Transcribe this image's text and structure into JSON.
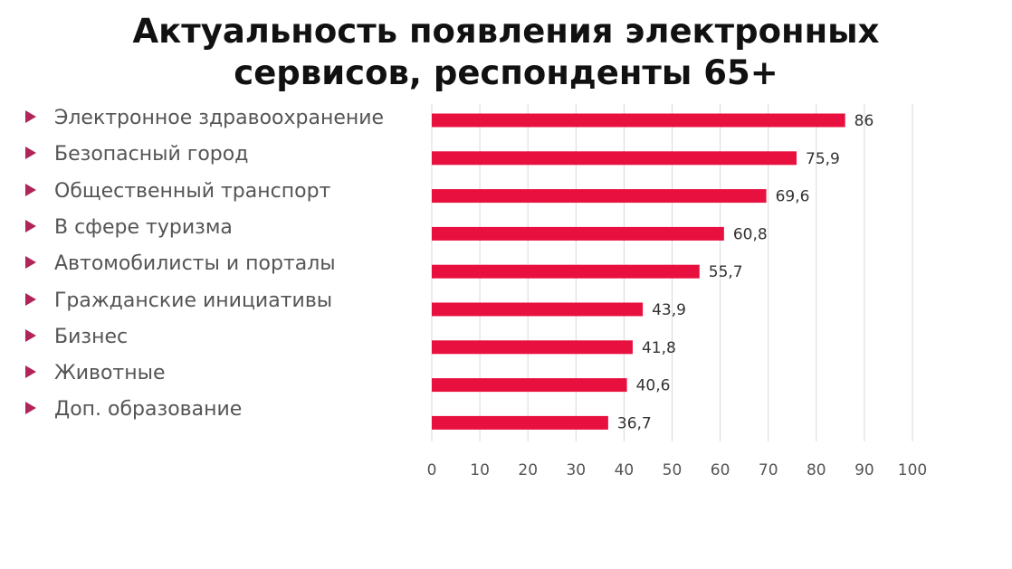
{
  "title": {
    "line1": "Актуальность появления электронных",
    "line2": "сервисов, респонденты 65+"
  },
  "colors": {
    "bar": "#e8103f",
    "bullet": "#b0245a",
    "grid": "#d9d9d9",
    "text": "#555555"
  },
  "chart_data": {
    "type": "bar",
    "orientation": "horizontal",
    "categories": [
      "Электронное здравоохранение",
      "Безопасный город",
      "Общественный транспорт",
      "В сфере туризма",
      "Автомобилисты и порталы",
      "Гражданские инициативы",
      "Бизнес",
      "Животные",
      "Доп. образование"
    ],
    "values": [
      86,
      75.9,
      69.6,
      60.8,
      55.7,
      43.9,
      41.8,
      40.6,
      36.7
    ],
    "data_labels": [
      "86",
      "75,9",
      "69,6",
      "60,8",
      "55,7",
      "43,9",
      "41,8",
      "40,6",
      "36,7"
    ],
    "xlim": [
      0,
      100
    ],
    "x_ticks": [
      "0",
      "10",
      "20",
      "30",
      "40",
      "50",
      "60",
      "70",
      "80",
      "90",
      "100"
    ],
    "grid": "vertical",
    "legend": "none"
  }
}
